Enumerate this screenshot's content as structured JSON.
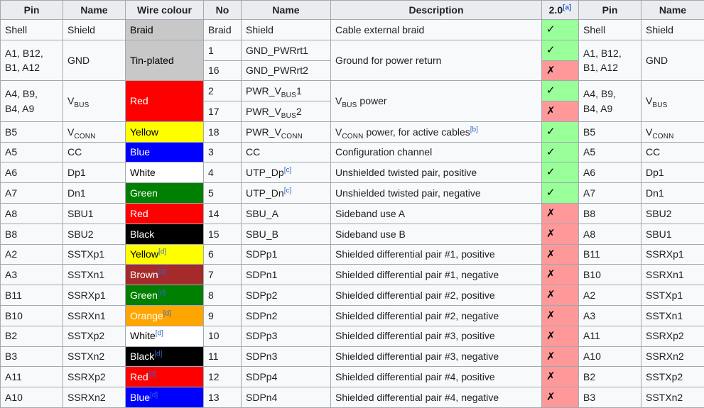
{
  "palette": {
    "braid": {
      "bg": "#c8c8c8",
      "fg": "#000000"
    },
    "red": {
      "bg": "#ff0000",
      "fg": "#ffffff"
    },
    "yellow": {
      "bg": "#ffff00",
      "fg": "#000000"
    },
    "blue": {
      "bg": "#0000ff",
      "fg": "#ffffff"
    },
    "white": {
      "bg": "#ffffff",
      "fg": "#000000"
    },
    "green": {
      "bg": "#008000",
      "fg": "#ffffff"
    },
    "black": {
      "bg": "#000000",
      "fg": "#ffffff"
    },
    "brown": {
      "bg": "#a52a2a",
      "fg": "#ffffff"
    },
    "orange": {
      "bg": "#ffa500",
      "fg": "#ffffff"
    },
    "yes": {
      "bg": "#99ff99",
      "fg": "#000000"
    },
    "no": {
      "bg": "#ff9999",
      "fg": "#000000"
    }
  },
  "glyphs": {
    "yes": "✓",
    "no": "✗"
  },
  "header": [
    {
      "s": [
        {
          "t": "Pin"
        }
      ]
    },
    {
      "s": [
        {
          "t": "Name"
        }
      ]
    },
    {
      "s": [
        {
          "t": "Wire colour"
        }
      ]
    },
    {
      "s": [
        {
          "t": "No"
        }
      ]
    },
    {
      "s": [
        {
          "t": "Name"
        }
      ]
    },
    {
      "s": [
        {
          "t": "Description"
        }
      ]
    },
    {
      "s": [
        {
          "t": "2.0"
        },
        {
          "sup": "[a]"
        }
      ]
    },
    {
      "s": [
        {
          "t": "Pin"
        }
      ]
    },
    {
      "s": [
        {
          "t": "Name"
        }
      ]
    }
  ],
  "rows": [
    [
      {
        "s": [
          {
            "t": "Shell"
          }
        ]
      },
      {
        "s": [
          {
            "t": "Shield"
          }
        ]
      },
      {
        "s": [
          {
            "t": "Braid"
          }
        ],
        "c": "braid"
      },
      {
        "s": [
          {
            "t": "Braid"
          }
        ]
      },
      {
        "s": [
          {
            "t": "Shield"
          }
        ]
      },
      {
        "s": [
          {
            "t": "Cable external braid"
          }
        ]
      },
      {
        "mark": "yes"
      },
      {
        "s": [
          {
            "t": "Shell"
          }
        ]
      },
      {
        "s": [
          {
            "t": "Shield"
          }
        ]
      }
    ],
    [
      {
        "s": [
          {
            "t": "A1, B12,"
          },
          {
            "br": true
          },
          {
            "t": "B1, A12"
          }
        ],
        "rs": 2
      },
      {
        "s": [
          {
            "t": "GND"
          }
        ],
        "rs": 2
      },
      {
        "s": [
          {
            "t": "Tin-plated"
          }
        ],
        "c": "braid",
        "rs": 2
      },
      {
        "s": [
          {
            "t": "1"
          }
        ]
      },
      {
        "s": [
          {
            "t": "GND_PWRrt1"
          }
        ]
      },
      {
        "s": [
          {
            "t": "Ground for power return"
          }
        ],
        "rs": 2
      },
      {
        "mark": "yes"
      },
      {
        "s": [
          {
            "t": "A1, B12,"
          },
          {
            "br": true
          },
          {
            "t": "B1, A12"
          }
        ],
        "rs": 2
      },
      {
        "s": [
          {
            "t": "GND"
          }
        ],
        "rs": 2
      }
    ],
    [
      {
        "s": [
          {
            "t": "16"
          }
        ]
      },
      {
        "s": [
          {
            "t": "GND_PWRrt2"
          }
        ]
      },
      {
        "mark": "no"
      }
    ],
    [
      {
        "s": [
          {
            "t": "A4, B9,"
          },
          {
            "br": true
          },
          {
            "t": "B4, A9"
          }
        ],
        "rs": 2
      },
      {
        "s": [
          {
            "t": "V"
          },
          {
            "sub": "BUS"
          }
        ],
        "rs": 2
      },
      {
        "s": [
          {
            "t": "Red"
          }
        ],
        "c": "red",
        "rs": 2
      },
      {
        "s": [
          {
            "t": "2"
          }
        ]
      },
      {
        "s": [
          {
            "t": "PWR_V"
          },
          {
            "sub": "BUS"
          },
          {
            "t": "1"
          }
        ]
      },
      {
        "s": [
          {
            "t": "V"
          },
          {
            "sub": "BUS"
          },
          {
            "t": " power"
          }
        ],
        "rs": 2
      },
      {
        "mark": "yes"
      },
      {
        "s": [
          {
            "t": "A4, B9,"
          },
          {
            "br": true
          },
          {
            "t": "B4, A9"
          }
        ],
        "rs": 2
      },
      {
        "s": [
          {
            "t": "V"
          },
          {
            "sub": "BUS"
          }
        ],
        "rs": 2
      }
    ],
    [
      {
        "s": [
          {
            "t": "17"
          }
        ]
      },
      {
        "s": [
          {
            "t": "PWR_V"
          },
          {
            "sub": "BUS"
          },
          {
            "t": "2"
          }
        ]
      },
      {
        "mark": "no"
      }
    ],
    [
      {
        "s": [
          {
            "t": "B5"
          }
        ]
      },
      {
        "s": [
          {
            "t": "V"
          },
          {
            "sub": "CONN"
          }
        ]
      },
      {
        "s": [
          {
            "t": "Yellow"
          }
        ],
        "c": "yellow"
      },
      {
        "s": [
          {
            "t": "18"
          }
        ]
      },
      {
        "s": [
          {
            "t": "PWR_V"
          },
          {
            "sub": "CONN"
          }
        ]
      },
      {
        "s": [
          {
            "t": "V"
          },
          {
            "sub": "CONN"
          },
          {
            "t": " power, for active cables"
          },
          {
            "sup": "[b]"
          }
        ]
      },
      {
        "mark": "yes"
      },
      {
        "s": [
          {
            "t": "B5"
          }
        ]
      },
      {
        "s": [
          {
            "t": "V"
          },
          {
            "sub": "CONN"
          }
        ]
      }
    ],
    [
      {
        "s": [
          {
            "t": "A5"
          }
        ]
      },
      {
        "s": [
          {
            "t": "CC"
          }
        ]
      },
      {
        "s": [
          {
            "t": "Blue"
          }
        ],
        "c": "blue"
      },
      {
        "s": [
          {
            "t": "3"
          }
        ]
      },
      {
        "s": [
          {
            "t": "CC"
          }
        ]
      },
      {
        "s": [
          {
            "t": "Configuration channel"
          }
        ]
      },
      {
        "mark": "yes"
      },
      {
        "s": [
          {
            "t": "A5"
          }
        ]
      },
      {
        "s": [
          {
            "t": "CC"
          }
        ]
      }
    ],
    [
      {
        "s": [
          {
            "t": "A6"
          }
        ]
      },
      {
        "s": [
          {
            "t": "Dp1"
          }
        ]
      },
      {
        "s": [
          {
            "t": "White"
          }
        ],
        "c": "white"
      },
      {
        "s": [
          {
            "t": "4"
          }
        ]
      },
      {
        "s": [
          {
            "t": "UTP_Dp"
          },
          {
            "sup": "[c]"
          }
        ]
      },
      {
        "s": [
          {
            "t": "Unshielded twisted pair, positive"
          }
        ]
      },
      {
        "mark": "yes"
      },
      {
        "s": [
          {
            "t": "A6"
          }
        ]
      },
      {
        "s": [
          {
            "t": "Dp1"
          }
        ]
      }
    ],
    [
      {
        "s": [
          {
            "t": "A7"
          }
        ]
      },
      {
        "s": [
          {
            "t": "Dn1"
          }
        ]
      },
      {
        "s": [
          {
            "t": "Green"
          }
        ],
        "c": "green"
      },
      {
        "s": [
          {
            "t": "5"
          }
        ]
      },
      {
        "s": [
          {
            "t": "UTP_Dn"
          },
          {
            "sup": "[c]"
          }
        ]
      },
      {
        "s": [
          {
            "t": "Unshielded twisted pair, negative"
          }
        ]
      },
      {
        "mark": "yes"
      },
      {
        "s": [
          {
            "t": "A7"
          }
        ]
      },
      {
        "s": [
          {
            "t": "Dn1"
          }
        ]
      }
    ],
    [
      {
        "s": [
          {
            "t": "A8"
          }
        ]
      },
      {
        "s": [
          {
            "t": "SBU1"
          }
        ]
      },
      {
        "s": [
          {
            "t": "Red"
          }
        ],
        "c": "red"
      },
      {
        "s": [
          {
            "t": "14"
          }
        ]
      },
      {
        "s": [
          {
            "t": "SBU_A"
          }
        ]
      },
      {
        "s": [
          {
            "t": "Sideband use A"
          }
        ]
      },
      {
        "mark": "no"
      },
      {
        "s": [
          {
            "t": "B8"
          }
        ]
      },
      {
        "s": [
          {
            "t": "SBU2"
          }
        ]
      }
    ],
    [
      {
        "s": [
          {
            "t": "B8"
          }
        ]
      },
      {
        "s": [
          {
            "t": "SBU2"
          }
        ]
      },
      {
        "s": [
          {
            "t": "Black"
          }
        ],
        "c": "black"
      },
      {
        "s": [
          {
            "t": "15"
          }
        ]
      },
      {
        "s": [
          {
            "t": "SBU_B"
          }
        ]
      },
      {
        "s": [
          {
            "t": "Sideband use B"
          }
        ]
      },
      {
        "mark": "no"
      },
      {
        "s": [
          {
            "t": "A8"
          }
        ]
      },
      {
        "s": [
          {
            "t": "SBU1"
          }
        ]
      }
    ],
    [
      {
        "s": [
          {
            "t": "A2"
          }
        ]
      },
      {
        "s": [
          {
            "t": "SSTXp1"
          }
        ]
      },
      {
        "s": [
          {
            "t": "Yellow"
          },
          {
            "sup": "[d]"
          }
        ],
        "c": "yellow"
      },
      {
        "s": [
          {
            "t": "6"
          }
        ]
      },
      {
        "s": [
          {
            "t": "SDPp1"
          }
        ]
      },
      {
        "s": [
          {
            "t": "Shielded differential pair #1, positive"
          }
        ]
      },
      {
        "mark": "no"
      },
      {
        "s": [
          {
            "t": "B11"
          }
        ]
      },
      {
        "s": [
          {
            "t": "SSRXp1"
          }
        ]
      }
    ],
    [
      {
        "s": [
          {
            "t": "A3"
          }
        ]
      },
      {
        "s": [
          {
            "t": "SSTXn1"
          }
        ]
      },
      {
        "s": [
          {
            "t": "Brown"
          },
          {
            "sup": "[d]"
          }
        ],
        "c": "brown"
      },
      {
        "s": [
          {
            "t": "7"
          }
        ]
      },
      {
        "s": [
          {
            "t": "SDPn1"
          }
        ]
      },
      {
        "s": [
          {
            "t": "Shielded differential pair #1, negative"
          }
        ]
      },
      {
        "mark": "no"
      },
      {
        "s": [
          {
            "t": "B10"
          }
        ]
      },
      {
        "s": [
          {
            "t": "SSRXn1"
          }
        ]
      }
    ],
    [
      {
        "s": [
          {
            "t": "B11"
          }
        ]
      },
      {
        "s": [
          {
            "t": "SSRXp1"
          }
        ]
      },
      {
        "s": [
          {
            "t": "Green"
          },
          {
            "sup": "[d]"
          }
        ],
        "c": "green"
      },
      {
        "s": [
          {
            "t": "8"
          }
        ]
      },
      {
        "s": [
          {
            "t": "SDPp2"
          }
        ]
      },
      {
        "s": [
          {
            "t": "Shielded differential pair #2, positive"
          }
        ]
      },
      {
        "mark": "no"
      },
      {
        "s": [
          {
            "t": "A2"
          }
        ]
      },
      {
        "s": [
          {
            "t": "SSTXp1"
          }
        ]
      }
    ],
    [
      {
        "s": [
          {
            "t": "B10"
          }
        ]
      },
      {
        "s": [
          {
            "t": "SSRXn1"
          }
        ]
      },
      {
        "s": [
          {
            "t": "Orange"
          },
          {
            "sup": "[d]"
          }
        ],
        "c": "orange"
      },
      {
        "s": [
          {
            "t": "9"
          }
        ]
      },
      {
        "s": [
          {
            "t": "SDPn2"
          }
        ]
      },
      {
        "s": [
          {
            "t": "Shielded differential pair #2, negative"
          }
        ]
      },
      {
        "mark": "no"
      },
      {
        "s": [
          {
            "t": "A3"
          }
        ]
      },
      {
        "s": [
          {
            "t": "SSTXn1"
          }
        ]
      }
    ],
    [
      {
        "s": [
          {
            "t": "B2"
          }
        ]
      },
      {
        "s": [
          {
            "t": "SSTXp2"
          }
        ]
      },
      {
        "s": [
          {
            "t": "White"
          },
          {
            "sup": "[d]"
          }
        ],
        "c": "white"
      },
      {
        "s": [
          {
            "t": "10"
          }
        ]
      },
      {
        "s": [
          {
            "t": "SDPp3"
          }
        ]
      },
      {
        "s": [
          {
            "t": "Shielded differential pair #3, positive"
          }
        ]
      },
      {
        "mark": "no"
      },
      {
        "s": [
          {
            "t": "A11"
          }
        ]
      },
      {
        "s": [
          {
            "t": "SSRXp2"
          }
        ]
      }
    ],
    [
      {
        "s": [
          {
            "t": "B3"
          }
        ]
      },
      {
        "s": [
          {
            "t": "SSTXn2"
          }
        ]
      },
      {
        "s": [
          {
            "t": "Black"
          },
          {
            "sup": "[d]"
          }
        ],
        "c": "black"
      },
      {
        "s": [
          {
            "t": "11"
          }
        ]
      },
      {
        "s": [
          {
            "t": "SDPn3"
          }
        ]
      },
      {
        "s": [
          {
            "t": "Shielded differential pair #3, negative"
          }
        ]
      },
      {
        "mark": "no"
      },
      {
        "s": [
          {
            "t": "A10"
          }
        ]
      },
      {
        "s": [
          {
            "t": "SSRXn2"
          }
        ]
      }
    ],
    [
      {
        "s": [
          {
            "t": "A11"
          }
        ]
      },
      {
        "s": [
          {
            "t": "SSRXp2"
          }
        ]
      },
      {
        "s": [
          {
            "t": "Red"
          },
          {
            "sup": "[d]"
          }
        ],
        "c": "red"
      },
      {
        "s": [
          {
            "t": "12"
          }
        ]
      },
      {
        "s": [
          {
            "t": "SDPp4"
          }
        ]
      },
      {
        "s": [
          {
            "t": "Shielded differential pair #4, positive"
          }
        ]
      },
      {
        "mark": "no"
      },
      {
        "s": [
          {
            "t": "B2"
          }
        ]
      },
      {
        "s": [
          {
            "t": "SSTXp2"
          }
        ]
      }
    ],
    [
      {
        "s": [
          {
            "t": "A10"
          }
        ]
      },
      {
        "s": [
          {
            "t": "SSRXn2"
          }
        ]
      },
      {
        "s": [
          {
            "t": "Blue"
          },
          {
            "sup": "[d]"
          }
        ],
        "c": "blue"
      },
      {
        "s": [
          {
            "t": "13"
          }
        ]
      },
      {
        "s": [
          {
            "t": "SDPn4"
          }
        ]
      },
      {
        "s": [
          {
            "t": "Shielded differential pair #4, negative"
          }
        ]
      },
      {
        "mark": "no"
      },
      {
        "s": [
          {
            "t": "B3"
          }
        ]
      },
      {
        "s": [
          {
            "t": "SSTXn2"
          }
        ]
      }
    ]
  ]
}
